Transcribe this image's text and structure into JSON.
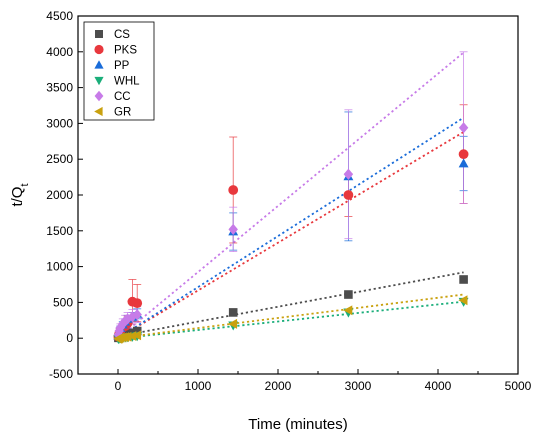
{
  "chart_data": {
    "type": "scatter",
    "xlabel": "Time (minutes)",
    "ylabel": "t/Q",
    "ylabel_subscript": "t",
    "xlim": [
      -500,
      5000
    ],
    "ylim": [
      -500,
      4500
    ],
    "xticks": [
      0,
      1000,
      2000,
      3000,
      4000,
      5000
    ],
    "yticks": [
      -500,
      0,
      500,
      1000,
      1500,
      2000,
      2500,
      3000,
      3500,
      4000,
      4500
    ],
    "legend_position": "top-left",
    "series": [
      {
        "name": "CS",
        "color": "#4d4d4d",
        "marker": "square",
        "x": [
          5,
          15,
          30,
          60,
          90,
          120,
          180,
          240,
          1440,
          2880,
          4320
        ],
        "y": [
          5,
          10,
          20,
          30,
          45,
          55,
          75,
          100,
          360,
          610,
          820
        ],
        "error": [
          0,
          0,
          0,
          0,
          0,
          0,
          0,
          0,
          0,
          0,
          0
        ],
        "fit": {
          "x": [
            0,
            4320
          ],
          "y": [
            25,
            920
          ]
        }
      },
      {
        "name": "PKS",
        "color": "#e8383d",
        "marker": "circle",
        "x": [
          5,
          15,
          30,
          60,
          90,
          120,
          180,
          240,
          1440,
          2880,
          4320
        ],
        "y": [
          20,
          60,
          100,
          150,
          170,
          210,
          510,
          490,
          2070,
          2000,
          2570
        ],
        "error": [
          15,
          30,
          40,
          60,
          80,
          100,
          310,
          260,
          740,
          300,
          690
        ],
        "fit": {
          "x": [
            0,
            4320
          ],
          "y": [
            0,
            2880
          ]
        }
      },
      {
        "name": "PP",
        "color": "#1a6cd9",
        "marker": "triangle-up",
        "x": [
          5,
          15,
          30,
          60,
          90,
          120,
          180,
          240,
          1440,
          2880,
          4320
        ],
        "y": [
          30,
          80,
          140,
          190,
          230,
          270,
          300,
          340,
          1490,
          2260,
          2440
        ],
        "error": [
          10,
          20,
          30,
          40,
          40,
          50,
          60,
          70,
          260,
          900,
          380
        ],
        "fit": {
          "x": [
            0,
            4320
          ],
          "y": [
            0,
            3080
          ]
        }
      },
      {
        "name": "WHL",
        "color": "#1aae7a",
        "marker": "triangle-down",
        "x": [
          5,
          15,
          30,
          60,
          90,
          120,
          180,
          240,
          1440,
          2880,
          4320
        ],
        "y": [
          -10,
          -5,
          0,
          5,
          10,
          15,
          20,
          30,
          180,
          360,
          510
        ],
        "error": [
          0,
          0,
          0,
          0,
          0,
          0,
          0,
          0,
          0,
          0,
          0
        ],
        "fit": {
          "x": [
            0,
            4320
          ],
          "y": [
            -5,
            510
          ]
        }
      },
      {
        "name": "CC",
        "color": "#c77be8",
        "marker": "diamond",
        "x": [
          5,
          15,
          30,
          60,
          90,
          120,
          180,
          240,
          1440,
          2880,
          4320
        ],
        "y": [
          50,
          100,
          150,
          200,
          240,
          270,
          300,
          330,
          1520,
          2290,
          2940
        ],
        "error": [
          20,
          40,
          50,
          70,
          80,
          90,
          100,
          110,
          310,
          900,
          1060
        ],
        "fit": {
          "x": [
            0,
            4320
          ],
          "y": [
            0,
            3990
          ]
        }
      },
      {
        "name": "GR",
        "color": "#c9a10f",
        "marker": "triangle-left",
        "x": [
          5,
          15,
          30,
          60,
          90,
          120,
          180,
          240,
          1440,
          2880,
          4320
        ],
        "y": [
          -10,
          0,
          5,
          10,
          15,
          20,
          30,
          40,
          200,
          390,
          530
        ],
        "error": [
          0,
          0,
          0,
          0,
          0,
          0,
          0,
          0,
          0,
          0,
          0
        ],
        "fit": {
          "x": [
            0,
            4320
          ],
          "y": [
            0,
            610
          ]
        }
      }
    ]
  }
}
